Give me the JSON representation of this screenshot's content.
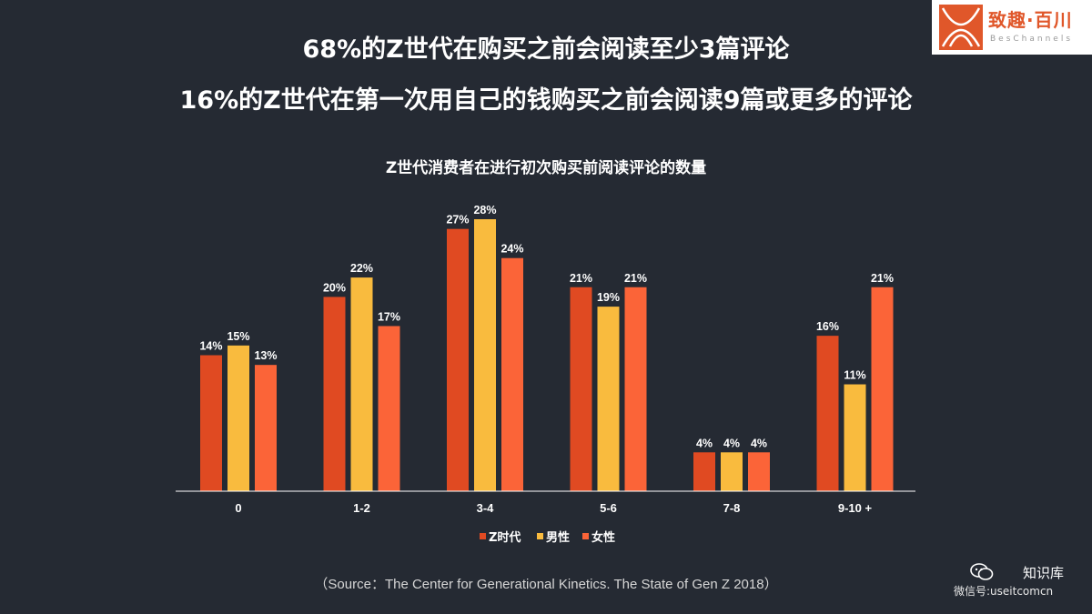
{
  "headlines": {
    "line1": "68%的Z世代在购买之前会阅读至少3篇评论",
    "line2": "16%的Z世代在第一次用自己的钱购买之前会阅读9篇或更多的评论"
  },
  "logo": {
    "name": "致趣·百川",
    "sub": "BesChannels"
  },
  "chart_data": {
    "type": "bar",
    "title": "Z世代消费者在进行初次购买前阅读评论的数量",
    "xlabel": "",
    "ylabel": "",
    "ylim": [
      0,
      28
    ],
    "value_suffix": "%",
    "grid": false,
    "legend_position": "bottom-center",
    "categories": [
      "0",
      "1-2",
      "3-4",
      "5-6",
      "7-8",
      "9-10 +"
    ],
    "series": [
      {
        "name": "Z时代",
        "color": "#e04a22",
        "values": [
          14,
          20,
          27,
          21,
          4,
          16
        ]
      },
      {
        "name": "男性",
        "color": "#f9bb3e",
        "values": [
          15,
          22,
          28,
          19,
          4,
          11
        ]
      },
      {
        "name": "女性",
        "color": "#fb6438",
        "values": [
          13,
          17,
          24,
          21,
          4,
          21
        ]
      }
    ]
  },
  "source": "（Source：The Center for Generational Kinetics. The State of Gen Z 2018）",
  "watermark": {
    "title": "知识库",
    "sub": "微信号:useitcomcn"
  }
}
